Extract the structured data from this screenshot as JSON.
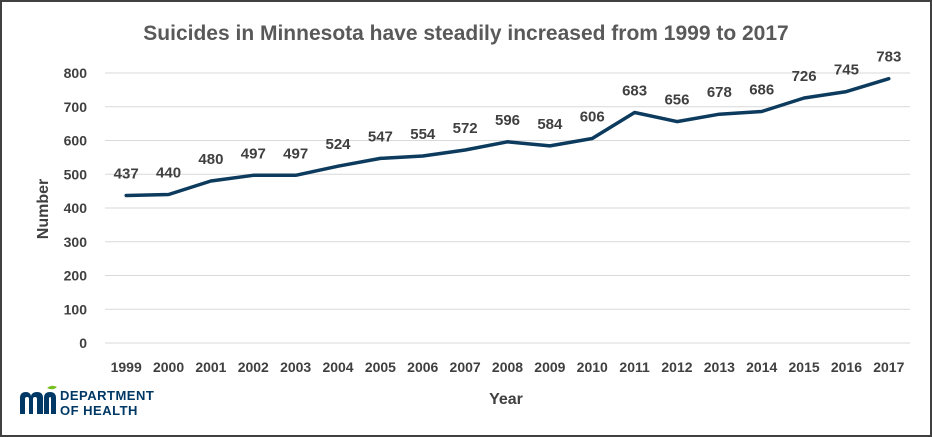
{
  "chart_data": {
    "type": "line",
    "title": "Suicides in Minnesota have steadily increased from 1999 to 2017",
    "xlabel": "Year",
    "ylabel": "Number",
    "ylim": [
      0,
      800
    ],
    "yticks": [
      "0",
      "100",
      "200",
      "300",
      "400",
      "500",
      "600",
      "700",
      "800"
    ],
    "grid": true,
    "categories": [
      "1999",
      "2000",
      "2001",
      "2002",
      "2003",
      "2004",
      "2005",
      "2006",
      "2007",
      "2008",
      "2009",
      "2010",
      "2011",
      "2012",
      "2013",
      "2014",
      "2015",
      "2016",
      "2017"
    ],
    "values": [
      437,
      440,
      480,
      497,
      497,
      524,
      547,
      554,
      572,
      596,
      584,
      606,
      683,
      656,
      678,
      686,
      726,
      745,
      783
    ],
    "data_labels": [
      "437",
      "440",
      "480",
      "497",
      "497",
      "524",
      "547",
      "554",
      "572",
      "596",
      "584",
      "606",
      "683",
      "656",
      "678",
      "686",
      "726",
      "745",
      "783"
    ],
    "line_color": "#0d3b5e"
  },
  "logo": {
    "line1": "DEPARTMENT",
    "line2": "OF HEALTH",
    "brand_color": "#003865",
    "accent_color": "#78be20"
  }
}
